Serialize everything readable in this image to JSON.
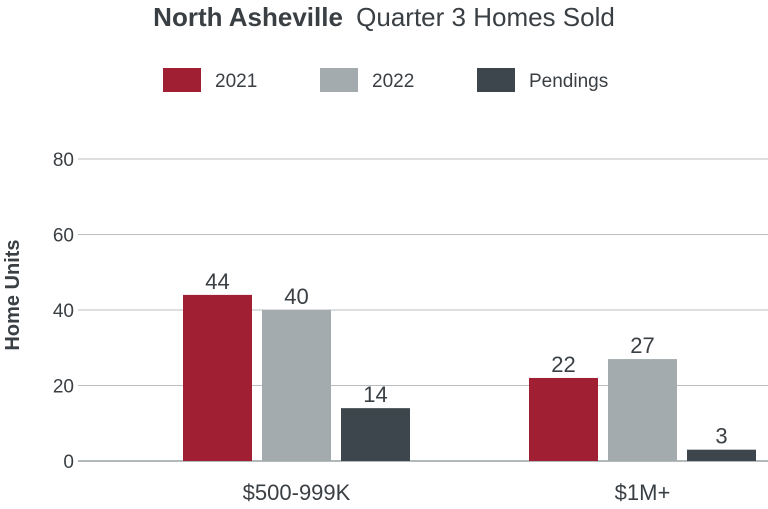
{
  "chart_data": {
    "type": "bar",
    "title_bold": "North Asheville",
    "title_rest": "Quarter 3 Homes Sold",
    "xlabel": "",
    "ylabel": "Home Units",
    "ylim": [
      0,
      80
    ],
    "yticks": [
      0,
      20,
      40,
      60,
      80
    ],
    "grid": true,
    "legend_position": "top",
    "categories": [
      "$500-999K",
      "$1M+"
    ],
    "series": [
      {
        "name": "2021",
        "color": "#a01f33",
        "values": [
          44,
          22
        ]
      },
      {
        "name": "2022",
        "color": "#a4abaf",
        "values": [
          40,
          27
        ]
      },
      {
        "name": "Pendings",
        "color": "#3d464c",
        "values": [
          14,
          3
        ]
      }
    ]
  }
}
